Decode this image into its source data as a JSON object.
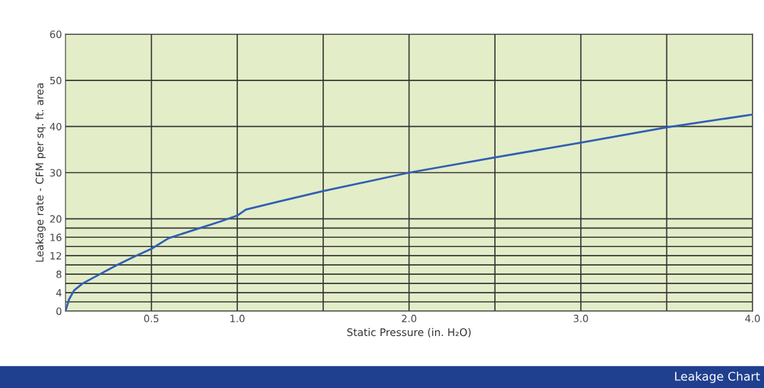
{
  "chart_data": {
    "type": "line",
    "xlabel": "Static Pressure (in. H₂O)",
    "ylabel": "Leakage rate - CFM per sq. ft. area",
    "x": [
      0,
      0.02,
      0.05,
      0.1,
      0.2,
      0.3,
      0.4,
      0.5,
      0.6,
      0.75,
      0.9,
      1.0,
      1.05,
      1.25,
      1.5,
      2.0,
      2.5,
      3.0,
      3.5,
      4.0
    ],
    "series": [
      {
        "color": "#2f5fb3",
        "values": [
          0,
          2.5,
          4.5,
          6,
          8,
          10,
          11.8,
          13.5,
          15.8,
          17.6,
          19.4,
          20.7,
          22,
          23.8,
          26,
          30,
          33.3,
          36.5,
          39.8,
          42.6
        ]
      }
    ],
    "xlim": [
      0,
      4
    ],
    "xticks": [
      {
        "value": 0.5,
        "label": "0.5"
      },
      {
        "value": 1.0,
        "label": "1.0"
      },
      {
        "value": 1.5,
        "label": null
      },
      {
        "value": 2.0,
        "label": "2.0"
      },
      {
        "value": 2.5,
        "label": null
      },
      {
        "value": 3.0,
        "label": "3.0"
      },
      {
        "value": 3.5,
        "label": null
      },
      {
        "value": 4.0,
        "label": "4.0"
      }
    ],
    "ylim": [
      0,
      60
    ],
    "yticks": [
      0,
      {
        "value": 2,
        "label": null
      },
      4,
      {
        "value": 6,
        "label": null
      },
      8,
      {
        "value": 10,
        "label": null
      },
      12,
      {
        "value": 14,
        "label": null
      },
      16,
      {
        "value": 18,
        "label": null
      },
      20,
      30,
      40,
      50,
      60
    ],
    "grid": true,
    "marker": "none",
    "line_style": "solid",
    "annotations": [
      "Leakage Chart"
    ]
  }
}
